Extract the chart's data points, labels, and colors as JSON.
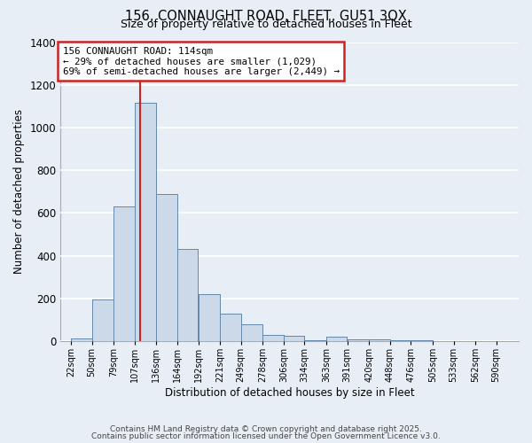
{
  "title1": "156, CONNAUGHT ROAD, FLEET, GU51 3QX",
  "title2": "Size of property relative to detached houses in Fleet",
  "xlabel": "Distribution of detached houses by size in Fleet",
  "ylabel": "Number of detached properties",
  "bar_left_edges": [
    22,
    50,
    79,
    107,
    136,
    164,
    192,
    221,
    249,
    278,
    306,
    334,
    363,
    391,
    420,
    448,
    476,
    505,
    533,
    562
  ],
  "bar_widths": [
    28,
    29,
    28,
    29,
    28,
    28,
    29,
    28,
    29,
    28,
    28,
    29,
    28,
    29,
    28,
    28,
    29,
    28,
    29,
    28
  ],
  "bar_heights": [
    15,
    195,
    630,
    1115,
    690,
    430,
    220,
    130,
    80,
    30,
    25,
    5,
    20,
    10,
    10,
    3,
    3,
    1,
    1,
    1
  ],
  "tick_labels": [
    "22sqm",
    "50sqm",
    "79sqm",
    "107sqm",
    "136sqm",
    "164sqm",
    "192sqm",
    "221sqm",
    "249sqm",
    "278sqm",
    "306sqm",
    "334sqm",
    "363sqm",
    "391sqm",
    "420sqm",
    "448sqm",
    "476sqm",
    "505sqm",
    "533sqm",
    "562sqm",
    "590sqm"
  ],
  "tick_positions": [
    22,
    50,
    79,
    107,
    136,
    164,
    192,
    221,
    249,
    278,
    306,
    334,
    363,
    391,
    420,
    448,
    476,
    505,
    533,
    562,
    590
  ],
  "bar_color": "#ccd9e8",
  "bar_edge_color": "#6688aa",
  "background_color": "#e8eef5",
  "grid_color": "#ffffff",
  "red_line_x": 114,
  "annotation_line1": "156 CONNAUGHT ROAD: 114sqm",
  "annotation_line2": "← 29% of detached houses are smaller (1,029)",
  "annotation_line3": "69% of semi-detached houses are larger (2,449) →",
  "ylim": [
    0,
    1400
  ],
  "yticks": [
    0,
    200,
    400,
    600,
    800,
    1000,
    1200,
    1400
  ],
  "footer1": "Contains HM Land Registry data © Crown copyright and database right 2025.",
  "footer2": "Contains public sector information licensed under the Open Government Licence v3.0."
}
